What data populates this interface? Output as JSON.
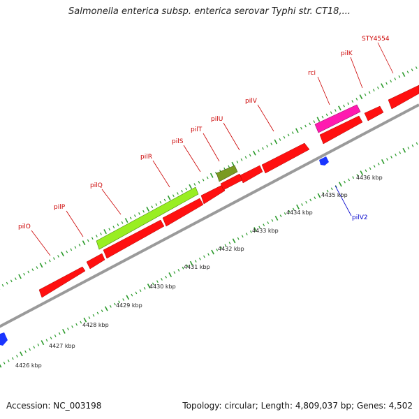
{
  "title": "Salmonella enterica subsp. enterica serovar Typhi str. CT18,...",
  "footer": {
    "accession": "Accession: NC_003198",
    "topology": "Topology: circular; Length: 4,809,037 bp; Genes: 4,502"
  },
  "colors": {
    "forward_gene": "#ff1010",
    "highlight_magenta": "#ff1ab0",
    "highlight_lime": "#99ee22",
    "highlight_olive": "#7a9a22",
    "reverse_gene": "#1a35ff",
    "backbone": "#999999",
    "tick": "#2a9a2a",
    "label": "#cc0000",
    "reverse_label": "#0000cc"
  },
  "kbp_labels": [
    "4426 kbp",
    "4427 kbp",
    "4428 kbp",
    "4429 kbp",
    "4430 kbp",
    "4431 kbp",
    "4432 kbp",
    "4433 kbp",
    "4434 kbp",
    "4435 kbp",
    "4436 kbp"
  ],
  "gene_labels": [
    "pilO",
    "pilP",
    "pilQ",
    "pilR",
    "pilS",
    "pilT",
    "pilU",
    "pilV",
    "rci",
    "pilK",
    "STY4554"
  ],
  "reverse_gene_label": "pilV2"
}
